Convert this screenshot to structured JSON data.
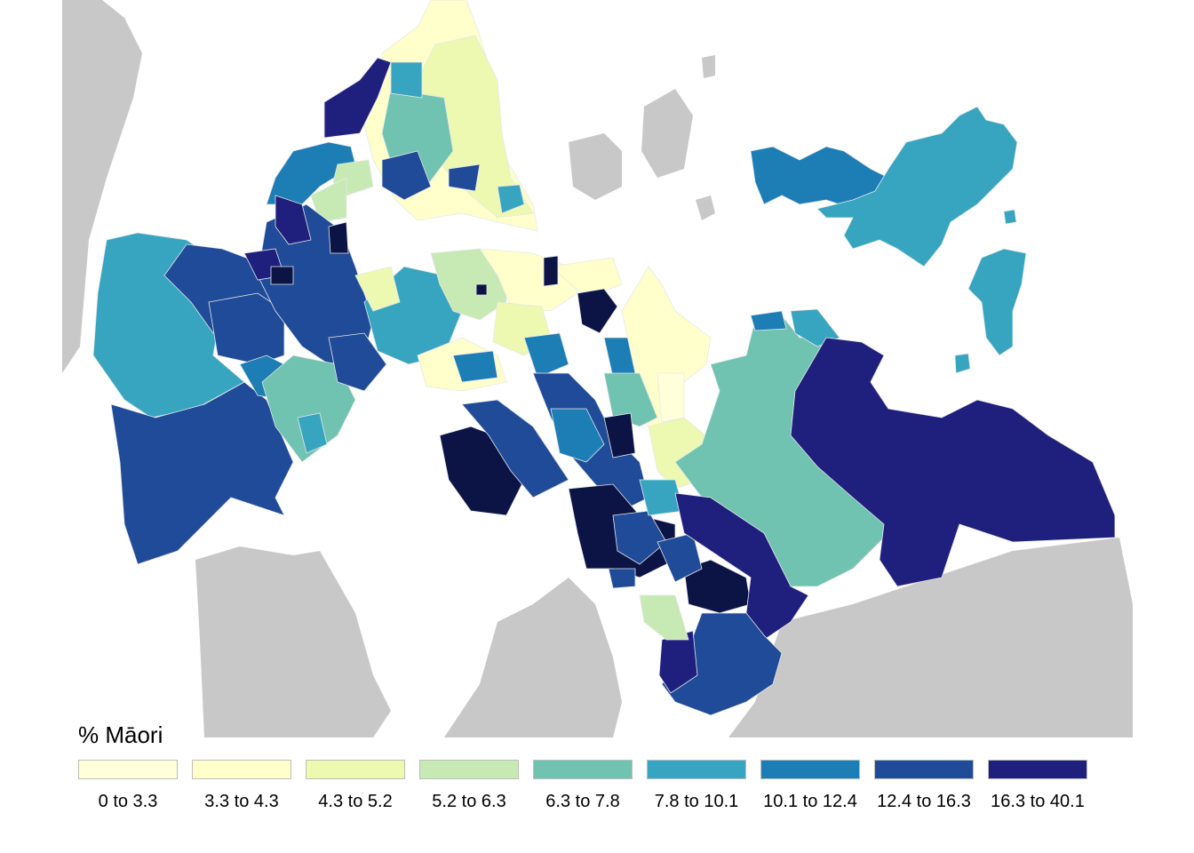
{
  "legend": {
    "title": "% Māori",
    "bins": [
      {
        "label": "0 to 3.3",
        "color": "#ffffd9"
      },
      {
        "label": "3.3 to 4.3",
        "color": "#ffffcc"
      },
      {
        "label": "4.3 to 5.2",
        "color": "#edf8b1"
      },
      {
        "label": "5.2 to 6.3",
        "color": "#c7e9b4"
      },
      {
        "label": "6.3 to 7.8",
        "color": "#6fc3b0"
      },
      {
        "label": "7.8 to 10.1",
        "color": "#37a5bf"
      },
      {
        "label": "10.1 to 12.4",
        "color": "#1d7db5"
      },
      {
        "label": "12.4 to 16.3",
        "color": "#1f4b98"
      },
      {
        "label": "16.3 to 40.1",
        "color": "#1f1f7d"
      }
    ]
  },
  "map": {
    "land_color": "#c8c8c8",
    "water_color": "#ffffff",
    "darkest_color": "#0c1446"
  }
}
